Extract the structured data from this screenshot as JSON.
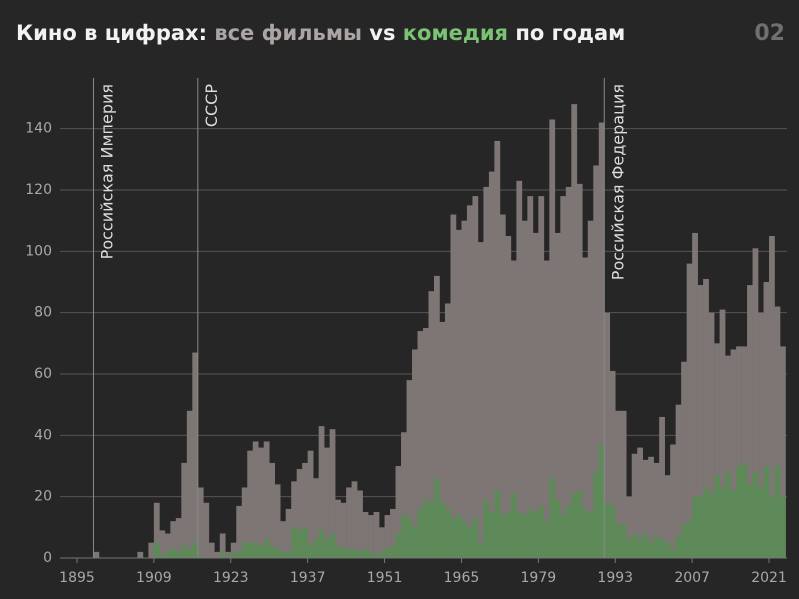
{
  "chart_data": {
    "type": "bar",
    "title": "Кино в цифрах:",
    "title_joiner": "vs",
    "title_suffix": "по годам",
    "page_number": "02",
    "x": [
      1898,
      1899,
      1900,
      1901,
      1902,
      1903,
      1904,
      1905,
      1906,
      1907,
      1908,
      1909,
      1910,
      1911,
      1912,
      1913,
      1914,
      1915,
      1916,
      1917,
      1918,
      1919,
      1920,
      1921,
      1922,
      1923,
      1924,
      1925,
      1926,
      1927,
      1928,
      1929,
      1930,
      1931,
      1932,
      1933,
      1934,
      1935,
      1936,
      1937,
      1938,
      1939,
      1940,
      1941,
      1942,
      1943,
      1944,
      1945,
      1946,
      1947,
      1948,
      1949,
      1950,
      1951,
      1952,
      1953,
      1954,
      1955,
      1956,
      1957,
      1958,
      1959,
      1960,
      1961,
      1962,
      1963,
      1964,
      1965,
      1966,
      1967,
      1968,
      1969,
      1970,
      1971,
      1972,
      1973,
      1974,
      1975,
      1976,
      1977,
      1978,
      1979,
      1980,
      1981,
      1982,
      1983,
      1984,
      1985,
      1986,
      1987,
      1988,
      1989,
      1990,
      1991,
      1992,
      1993,
      1994,
      1995,
      1996,
      1997,
      1998,
      1999,
      2000,
      2001,
      2002,
      2003,
      2004,
      2005,
      2006,
      2007,
      2008,
      2009,
      2010,
      2011,
      2012,
      2013,
      2014,
      2015,
      2016,
      2017,
      2018,
      2019,
      2020,
      2021,
      2022,
      2023
    ],
    "series": [
      {
        "name": "все фильмы",
        "color": "#7d7674",
        "values": [
          2,
          0,
          0,
          0,
          0,
          0,
          0,
          0,
          2,
          0,
          5,
          18,
          9,
          8,
          12,
          13,
          31,
          48,
          67,
          23,
          18,
          5,
          2,
          8,
          2,
          5,
          17,
          23,
          35,
          38,
          36,
          38,
          31,
          24,
          12,
          16,
          25,
          29,
          31,
          35,
          26,
          43,
          36,
          42,
          19,
          18,
          23,
          25,
          22,
          15,
          14,
          15,
          10,
          14,
          16,
          30,
          41,
          58,
          68,
          74,
          75,
          87,
          92,
          77,
          83,
          112,
          107,
          110,
          115,
          118,
          103,
          121,
          126,
          136,
          112,
          105,
          97,
          123,
          110,
          118,
          106,
          118,
          97,
          143,
          106,
          118,
          121,
          148,
          122,
          98,
          110,
          128,
          142,
          80,
          61,
          48,
          48,
          20,
          34,
          36,
          32,
          33,
          31,
          46,
          27,
          37,
          50,
          64,
          96,
          106,
          89,
          91,
          80,
          70,
          81,
          66,
          68,
          69,
          69,
          89,
          101,
          80,
          90,
          105,
          82,
          69
        ]
      },
      {
        "name": "комедия",
        "color": "#5e8a59",
        "values": [
          0,
          0,
          0,
          0,
          0,
          0,
          0,
          0,
          0,
          0,
          0,
          5,
          1,
          2,
          3,
          2,
          4,
          3,
          5,
          1,
          0,
          0,
          0,
          2,
          0,
          2,
          2,
          5,
          5,
          5,
          4,
          6,
          4,
          3,
          2,
          2,
          10,
          9,
          10,
          4,
          6,
          9,
          6,
          8,
          4,
          3,
          3,
          3,
          2,
          3,
          2,
          1,
          2,
          3,
          4,
          8,
          14,
          13,
          10,
          16,
          19,
          18,
          26,
          18,
          16,
          13,
          14,
          12,
          10,
          13,
          5,
          19,
          15,
          22,
          14,
          15,
          21,
          15,
          14,
          16,
          15,
          17,
          12,
          26,
          19,
          14,
          17,
          21,
          22,
          16,
          15,
          28,
          37,
          18,
          17,
          11,
          11,
          6,
          8,
          6,
          8,
          5,
          7,
          6,
          5,
          3,
          7,
          11,
          12,
          20,
          20,
          23,
          21,
          27,
          23,
          28,
          22,
          30,
          31,
          24,
          28,
          23,
          30,
          20,
          30,
          20
        ]
      }
    ],
    "annotations": [
      {
        "x": 1898,
        "label": "Российская Империя"
      },
      {
        "x": 1917,
        "label": "СССР"
      },
      {
        "x": 1991,
        "label": "Российская Федерация"
      }
    ],
    "xlim": [
      1893,
      2025
    ],
    "xticks": [
      1895,
      1909,
      1923,
      1937,
      1951,
      1965,
      1979,
      1993,
      2007,
      2021
    ],
    "ylim": [
      0,
      150
    ],
    "yticks": [
      0,
      20,
      40,
      60,
      80,
      100,
      120,
      140
    ],
    "grid": true
  }
}
